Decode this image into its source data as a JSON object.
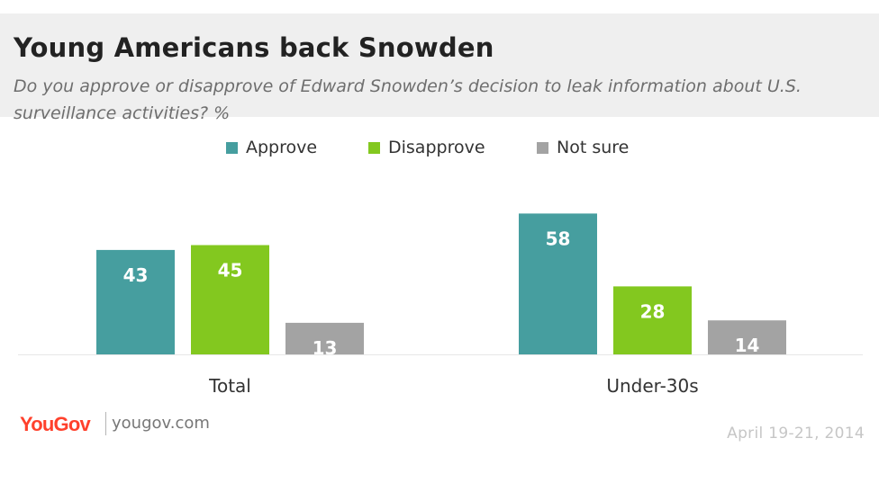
{
  "header": {
    "title": "Young Americans back Snowden",
    "subtitle": "Do you approve or disapprove of Edward Snowden’s decision to leak information about U.S. surveillance activities? %"
  },
  "legend": [
    {
      "label": "Approve",
      "color": "#469e9f"
    },
    {
      "label": "Disapprove",
      "color": "#83c81f"
    },
    {
      "label": "Not sure",
      "color": "#a3a3a3"
    }
  ],
  "footer": {
    "brand": "YouGov",
    "site": "yougov.com",
    "date": "April 19-21, 2014"
  },
  "chart_data": {
    "type": "bar",
    "title": "Young Americans back Snowden",
    "subtitle": "Do you approve or disapprove of Edward Snowden’s decision to leak information about U.S. surveillance activities? %",
    "categories": [
      "Total",
      "Under-30s"
    ],
    "series": [
      {
        "name": "Approve",
        "color": "#469e9f",
        "values": [
          43,
          58
        ]
      },
      {
        "name": "Disapprove",
        "color": "#83c81f",
        "values": [
          45,
          28
        ]
      },
      {
        "name": "Not sure",
        "color": "#a3a3a3",
        "values": [
          13,
          14
        ]
      }
    ],
    "ylim": [
      0,
      60
    ],
    "grid": false,
    "legend_position": "top-center",
    "data_labels": true
  }
}
